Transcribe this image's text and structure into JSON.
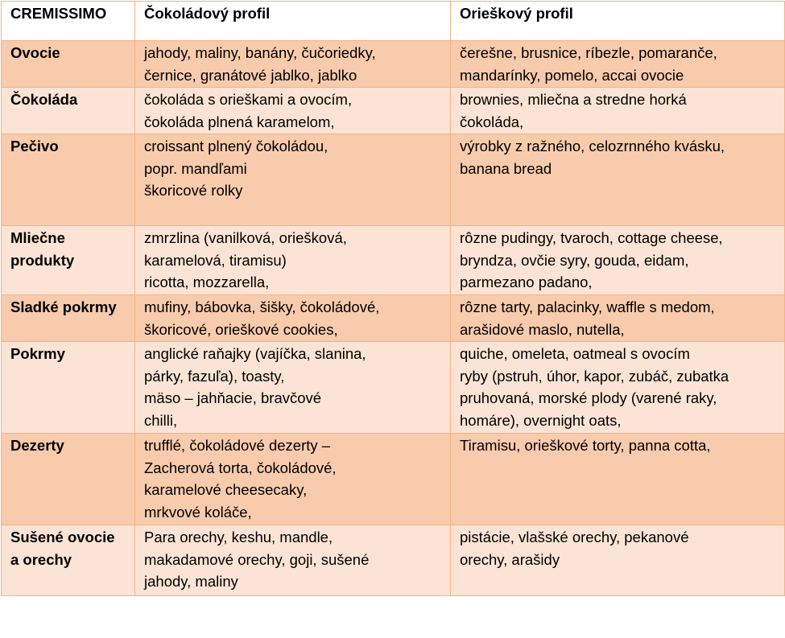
{
  "header": {
    "brand": "CREMISSIMO",
    "col_chocolate": "Čokoládový profil",
    "col_nut": "Orieškový profil"
  },
  "rows": [
    {
      "category": [
        "Ovocie"
      ],
      "chocolate": [
        "jahody, maliny, banány, čučoriedky,",
        "černice, granátové jablko, jablko"
      ],
      "nut": [
        "čerešne, brusnice, ríbezle, pomaranče,",
        "mandarínky, pomelo, accai ovocie"
      ]
    },
    {
      "category": [
        "Čokoláda"
      ],
      "chocolate": [
        "čokoláda s orieškami a ovocím,",
        "čokoláda plnená karamelom,"
      ],
      "nut": [
        "brownies, mliečna a stredne horká",
        "čokoláda,"
      ]
    },
    {
      "category": [
        "Pečivo"
      ],
      "chocolate": [
        "croissant plnený čokoládou,",
        "popr. mandľami",
        "škoricové rolky"
      ],
      "nut": [
        "výrobky z ražného, celozrnného kvásku,",
        "banana bread"
      ]
    },
    {
      "category": [
        "Mliečne",
        "produkty"
      ],
      "chocolate": [
        "zmrzlina (vanilková, oriešková,",
        "karamelová, tiramisu)",
        "ricotta, mozzarella,"
      ],
      "nut": [
        "rôzne pudingy, tvaroch, cottage cheese,",
        "bryndza, ovčie syry, gouda, eidam,",
        "parmezano padano,"
      ]
    },
    {
      "category": [
        "Sladké pokrmy"
      ],
      "chocolate": [
        "mufiny, bábovka, šišky, čokoládové,",
        "škoricové, orieškové cookies,"
      ],
      "nut": [
        "rôzne tarty, palacinky, waffle s medom,",
        "arašidové maslo, nutella,"
      ]
    },
    {
      "category": [
        "Pokrmy"
      ],
      "chocolate": [
        "anglické raňajky (vajíčka, slanina,",
        "párky, fazuľa), toasty,",
        "mäso – jahňacie, bravčové",
        "chilli,"
      ],
      "nut": [
        "quiche, omeleta, oatmeal s ovocím",
        "ryby (pstruh, úhor, kapor, zubáč, zubatka",
        "pruhovaná, morské plody (varené raky,",
        "homáre), overnight oats,"
      ]
    },
    {
      "category": [
        "Dezerty"
      ],
      "chocolate": [
        "trufflé, čokoládové dezerty –",
        "Zacherová torta,  čokoládové,",
        "karamelové cheesecaky,",
        "mrkvové koláče,"
      ],
      "nut": [
        "Tiramisu, orieškové torty, panna cotta,"
      ]
    },
    {
      "category": [
        "Sušené ovocie",
        "a orechy"
      ],
      "chocolate": [
        "Para orechy, keshu, mandle,",
        "makadamové orechy, goji, sušené",
        "jahody, maliny"
      ],
      "nut": [
        "pistácie, vlašské orechy, pekanové",
        "orechy, arašidy"
      ]
    }
  ]
}
